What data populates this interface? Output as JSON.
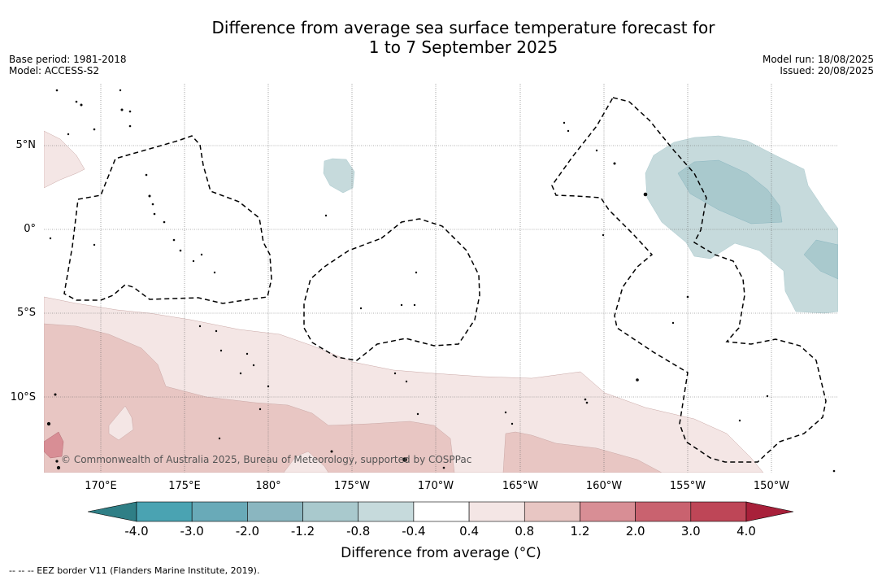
{
  "title_line1": "Difference from average sea surface temperature forecast for",
  "title_line2": "1 to 7 September 2025",
  "meta": {
    "base_period": "Base period: 1981-2018",
    "model": "Model: ACCESS-S2",
    "model_run": "Model run: 18/08/2025",
    "issued": "Issued: 20/08/2025"
  },
  "lat_labels": [
    "5°N",
    "0°",
    "5°S",
    "10°S"
  ],
  "lon_labels": [
    "170°E",
    "175°E",
    "180°",
    "175°W",
    "170°W",
    "165°W",
    "160°W",
    "155°W",
    "150°W"
  ],
  "copyright": "© Commonwealth of Australia 2025, Bureau of Meteorology, supported by COSPPac",
  "colorbar": {
    "ticks": [
      "-4.0",
      "-3.0",
      "-2.0",
      "-1.2",
      "-0.8",
      "-0.4",
      "0.4",
      "0.8",
      "1.2",
      "2.0",
      "3.0",
      "4.0"
    ],
    "colors": [
      "#2f7f86",
      "#4aa3b2",
      "#69aab8",
      "#8ab6c0",
      "#a9c9cd",
      "#c6dadc",
      "#ffffff",
      "#f4e6e5",
      "#e8c6c3",
      "#d88e95",
      "#c9626f",
      "#be4657",
      "#a8203a"
    ],
    "label": "Difference from average (°C)"
  },
  "footnote": "--  --  -- EEZ border V11 (Flanders Marine Institute, 2019)."
}
